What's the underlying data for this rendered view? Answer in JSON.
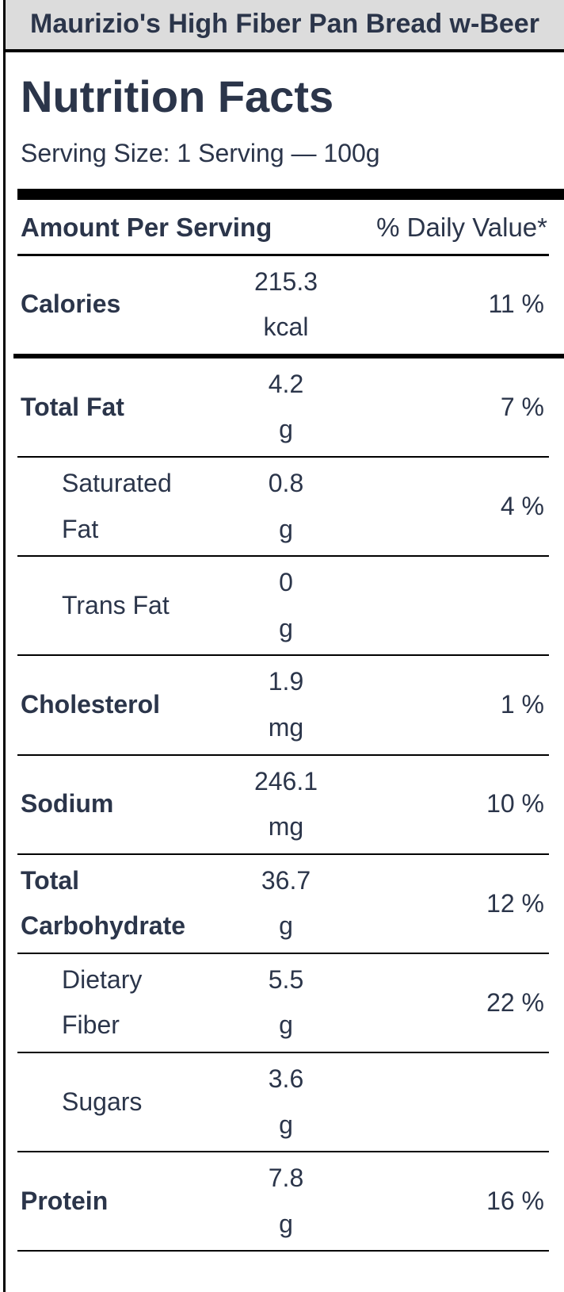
{
  "product": {
    "title": "Maurizio's High Fiber Pan Bread w-Beer"
  },
  "label": {
    "heading": "Nutrition Facts",
    "serving_size": "Serving Size: 1 Serving — 100g",
    "columns": {
      "amount_per_serving": "Amount Per Serving",
      "daily_value": "% Daily Value*"
    },
    "rows": [
      {
        "name": "Calories",
        "value": "215.3",
        "unit": "kcal",
        "dv": "11 %",
        "bold": true,
        "indent": false,
        "separator": "medium"
      },
      {
        "name": "Total Fat",
        "value": "4.2",
        "unit": "g",
        "dv": "7 %",
        "bold": true,
        "indent": false,
        "separator": "thin"
      },
      {
        "name": "Saturated Fat",
        "value": "0.8",
        "unit": "g",
        "dv": "4 %",
        "bold": false,
        "indent": true,
        "separator": "thin"
      },
      {
        "name": "Trans Fat",
        "value": "0",
        "unit": "g",
        "dv": "",
        "bold": false,
        "indent": true,
        "separator": "thin"
      },
      {
        "name": "Cholesterol",
        "value": "1.9",
        "unit": "mg",
        "dv": "1 %",
        "bold": true,
        "indent": false,
        "separator": "thin"
      },
      {
        "name": "Sodium",
        "value": "246.1",
        "unit": "mg",
        "dv": "10 %",
        "bold": true,
        "indent": false,
        "separator": "thin"
      },
      {
        "name": "Total Carbohydrate",
        "value": "36.7",
        "unit": "g",
        "dv": "12 %",
        "bold": true,
        "indent": false,
        "separator": "thin"
      },
      {
        "name": "Dietary Fiber",
        "value": "5.5",
        "unit": "g",
        "dv": "22 %",
        "bold": false,
        "indent": true,
        "separator": "thin"
      },
      {
        "name": "Sugars",
        "value": "3.6",
        "unit": "g",
        "dv": "",
        "bold": false,
        "indent": true,
        "separator": "thin"
      },
      {
        "name": "Protein",
        "value": "7.8",
        "unit": "g",
        "dv": "16 %",
        "bold": true,
        "indent": false,
        "separator": "thin"
      }
    ]
  },
  "colors": {
    "text": "#2b354a",
    "title_bar_background": "#dcdcdc",
    "divider": "#000000"
  }
}
